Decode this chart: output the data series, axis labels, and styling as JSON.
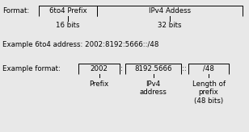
{
  "bg_color": "#e8e8e8",
  "text_color": "#000000",
  "line_color": "#000000",
  "format_label": "Format:",
  "box1_label": "6to4 Prefix",
  "box2_label": "IPv4 Addess",
  "bits1_label": "16 bits",
  "bits2_label": "32 bits",
  "example_addr": "Example 6to4 address: 2002:8192:5666::/48",
  "example_format_label": "Example format:",
  "box3_label": "2002",
  "sep1": ":",
  "box4_label": "8192.5666",
  "sep2": "::",
  "box5_label": "/48",
  "ann1": "Prefix",
  "ann2": "IPv4\naddress",
  "ann3": "Length of\nprefix\n(48 bits)",
  "fig_width": 3.08,
  "fig_height": 1.64,
  "dpi": 100
}
